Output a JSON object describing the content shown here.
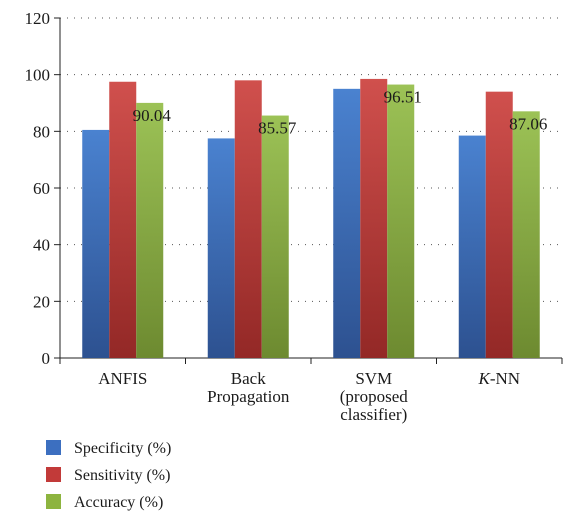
{
  "chart_data": {
    "type": "bar",
    "categories": [
      [
        "ANFIS"
      ],
      [
        "Back",
        "Propagation"
      ],
      [
        "SVM",
        "(proposed",
        "classifier)"
      ],
      [
        "K-NN"
      ]
    ],
    "series": [
      {
        "name": "Specificity (%)",
        "color": "#3c6fc0",
        "values": [
          80.5,
          77.5,
          95,
          78.5
        ]
      },
      {
        "name": "Sensitivity (%)",
        "color": "#c23a39",
        "values": [
          97.5,
          98,
          98.5,
          94
        ]
      },
      {
        "name": "Accuracy (%)",
        "color": "#8db43f",
        "values": [
          90.04,
          85.57,
          96.51,
          87.06
        ]
      }
    ],
    "data_labels": [
      "90.04",
      "85.57",
      "96.51",
      "87.06"
    ],
    "ylim": [
      0,
      120
    ],
    "yticks": [
      "0",
      "20",
      "40",
      "60",
      "80",
      "100",
      "120"
    ],
    "grid": "dotted horizontal",
    "legend_position": "bottom-left"
  }
}
